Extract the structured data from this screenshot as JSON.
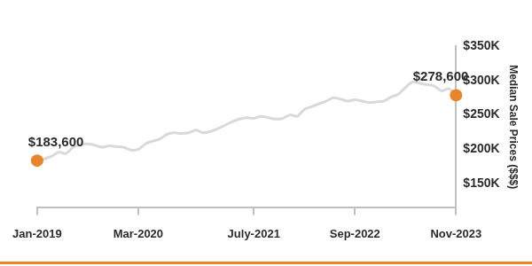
{
  "chart_data": {
    "type": "line",
    "y_label": "Median Sale Prices ($$$)",
    "categories": [
      "Jan-2019",
      null,
      null,
      null,
      null,
      null,
      null,
      null,
      null,
      null,
      null,
      null,
      null,
      null,
      "Mar-2020",
      null,
      null,
      null,
      null,
      null,
      null,
      null,
      null,
      null,
      null,
      null,
      null,
      null,
      null,
      null,
      "July-2021",
      null,
      null,
      null,
      null,
      null,
      null,
      null,
      null,
      null,
      null,
      null,
      null,
      null,
      "Sep-2022",
      null,
      null,
      null,
      null,
      null,
      null,
      null,
      null,
      null,
      null,
      null,
      null,
      null,
      "Nov-2023"
    ],
    "series": [
      {
        "name": "Median Sale Price",
        "color": "#d9d9d9",
        "marker": "circle",
        "values": [
          183600,
          186000,
          190000,
          196000,
          194000,
          203000,
          207000,
          208000,
          206000,
          203000,
          205000,
          204000,
          203000,
          199000,
          200000,
          208000,
          212000,
          215000,
          222000,
          224000,
          223000,
          224000,
          228000,
          224000,
          226000,
          230000,
          235000,
          240000,
          244000,
          246000,
          245000,
          248000,
          246000,
          244000,
          245000,
          250000,
          248000,
          258000,
          262000,
          266000,
          270000,
          275000,
          273000,
          270000,
          272000,
          270000,
          268000,
          269000,
          270000,
          276000,
          280000,
          290000,
          298000,
          296000,
          294000,
          292000,
          285000,
          288000,
          278600
        ],
        "value_labels": [
          "$183,600",
          null,
          null,
          null,
          null,
          null,
          null,
          null,
          null,
          null,
          null,
          null,
          null,
          null,
          null,
          null,
          null,
          null,
          null,
          null,
          null,
          null,
          null,
          null,
          null,
          null,
          null,
          null,
          null,
          null,
          null,
          null,
          null,
          null,
          null,
          null,
          null,
          null,
          null,
          null,
          null,
          null,
          null,
          null,
          null,
          null,
          null,
          null,
          null,
          null,
          null,
          null,
          null,
          null,
          null,
          null,
          null,
          null,
          "$278,600"
        ]
      }
    ],
    "ylim": [
      115000,
      350000
    ],
    "yticks": [
      {
        "value": 150000,
        "label": "$150K"
      },
      {
        "value": 200000,
        "label": "$200K"
      },
      {
        "value": 250000,
        "label": "$250K"
      },
      {
        "value": 300000,
        "label": "$300K"
      },
      {
        "value": 350000,
        "label": "$350K"
      }
    ],
    "grid": false,
    "data_labels": true
  }
}
